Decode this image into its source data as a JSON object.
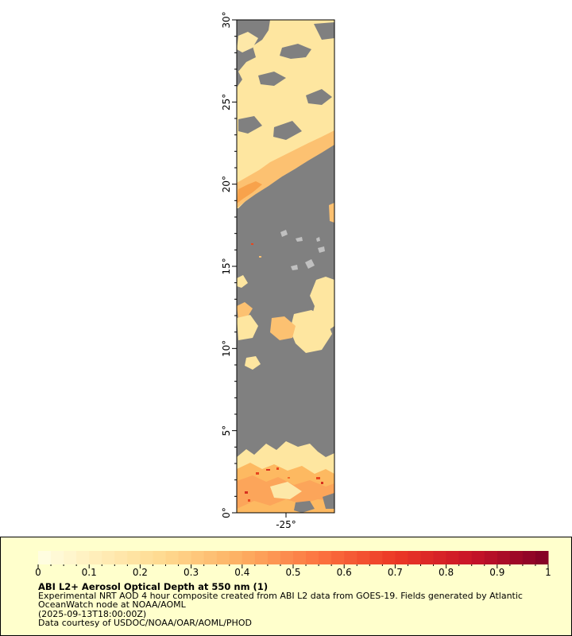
{
  "map": {
    "lat_labels": [
      "0°",
      "5°",
      "10°",
      "15°",
      "20°",
      "25°",
      "30°"
    ],
    "lon_labels": [
      "-25°"
    ],
    "lat_range": [
      0,
      30
    ],
    "colors": {
      "cloud_gray": "#808080",
      "land_lightgray": "#c0c0c0",
      "aod_low": "#ffe9a6",
      "aod_mid": "#fdb961",
      "aod_high": "#e8471e"
    }
  },
  "legend": {
    "title": "ABI L2+ Aerosol Optical Depth at 550 nm (1)",
    "line1": "Experimental NRT AOD 4 hour composite created from ABI L2 data from GOES-19. Fields generated by Atlantic",
    "line2": "OceanWatch node at NOAA/AOML",
    "line3": "(2025-09-13T18:00:00Z)",
    "line4": "Data courtesy of USDOC/NOAA/OAR/AOML/PHOD",
    "ticks": [
      "0",
      "0.1",
      "0.2",
      "0.3",
      "0.4",
      "0.5",
      "0.6",
      "0.7",
      "0.8",
      "0.9",
      "1"
    ],
    "scale_range": [
      0,
      1
    ],
    "background": "#ffffcc"
  }
}
